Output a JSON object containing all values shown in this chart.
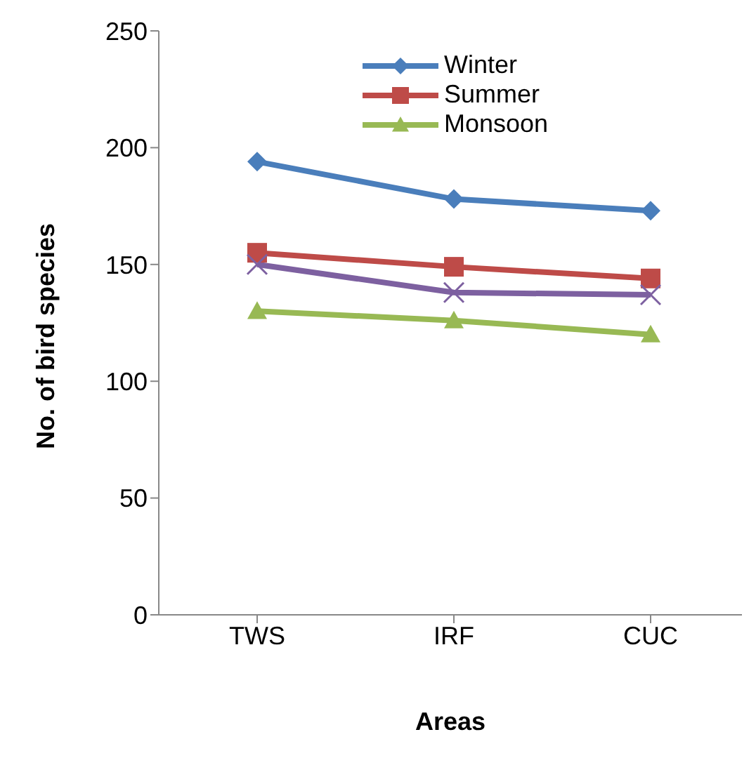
{
  "chart_data": {
    "type": "line",
    "xlabel": "Areas",
    "ylabel": "No. of bird species",
    "categories": [
      "TWS",
      "IRF",
      "CUC"
    ],
    "series": [
      {
        "name": "Winter",
        "color": "#4a7ebb",
        "marker": "diamond",
        "values": [
          194,
          178,
          173
        ]
      },
      {
        "name": "Summer",
        "color": "#be4b48",
        "marker": "square",
        "values": [
          155,
          149,
          144
        ]
      },
      {
        "name": "Monsoon",
        "color": "#98b954",
        "marker": "triangle",
        "values": [
          130,
          126,
          120
        ]
      },
      {
        "color": "#7d60a0",
        "marker": "cross",
        "values": [
          150,
          138,
          137
        ]
      }
    ],
    "ylim": [
      0,
      250
    ],
    "yticks": [
      0,
      50,
      100,
      150,
      200,
      250
    ],
    "legend": "top",
    "line_style": "solid"
  }
}
